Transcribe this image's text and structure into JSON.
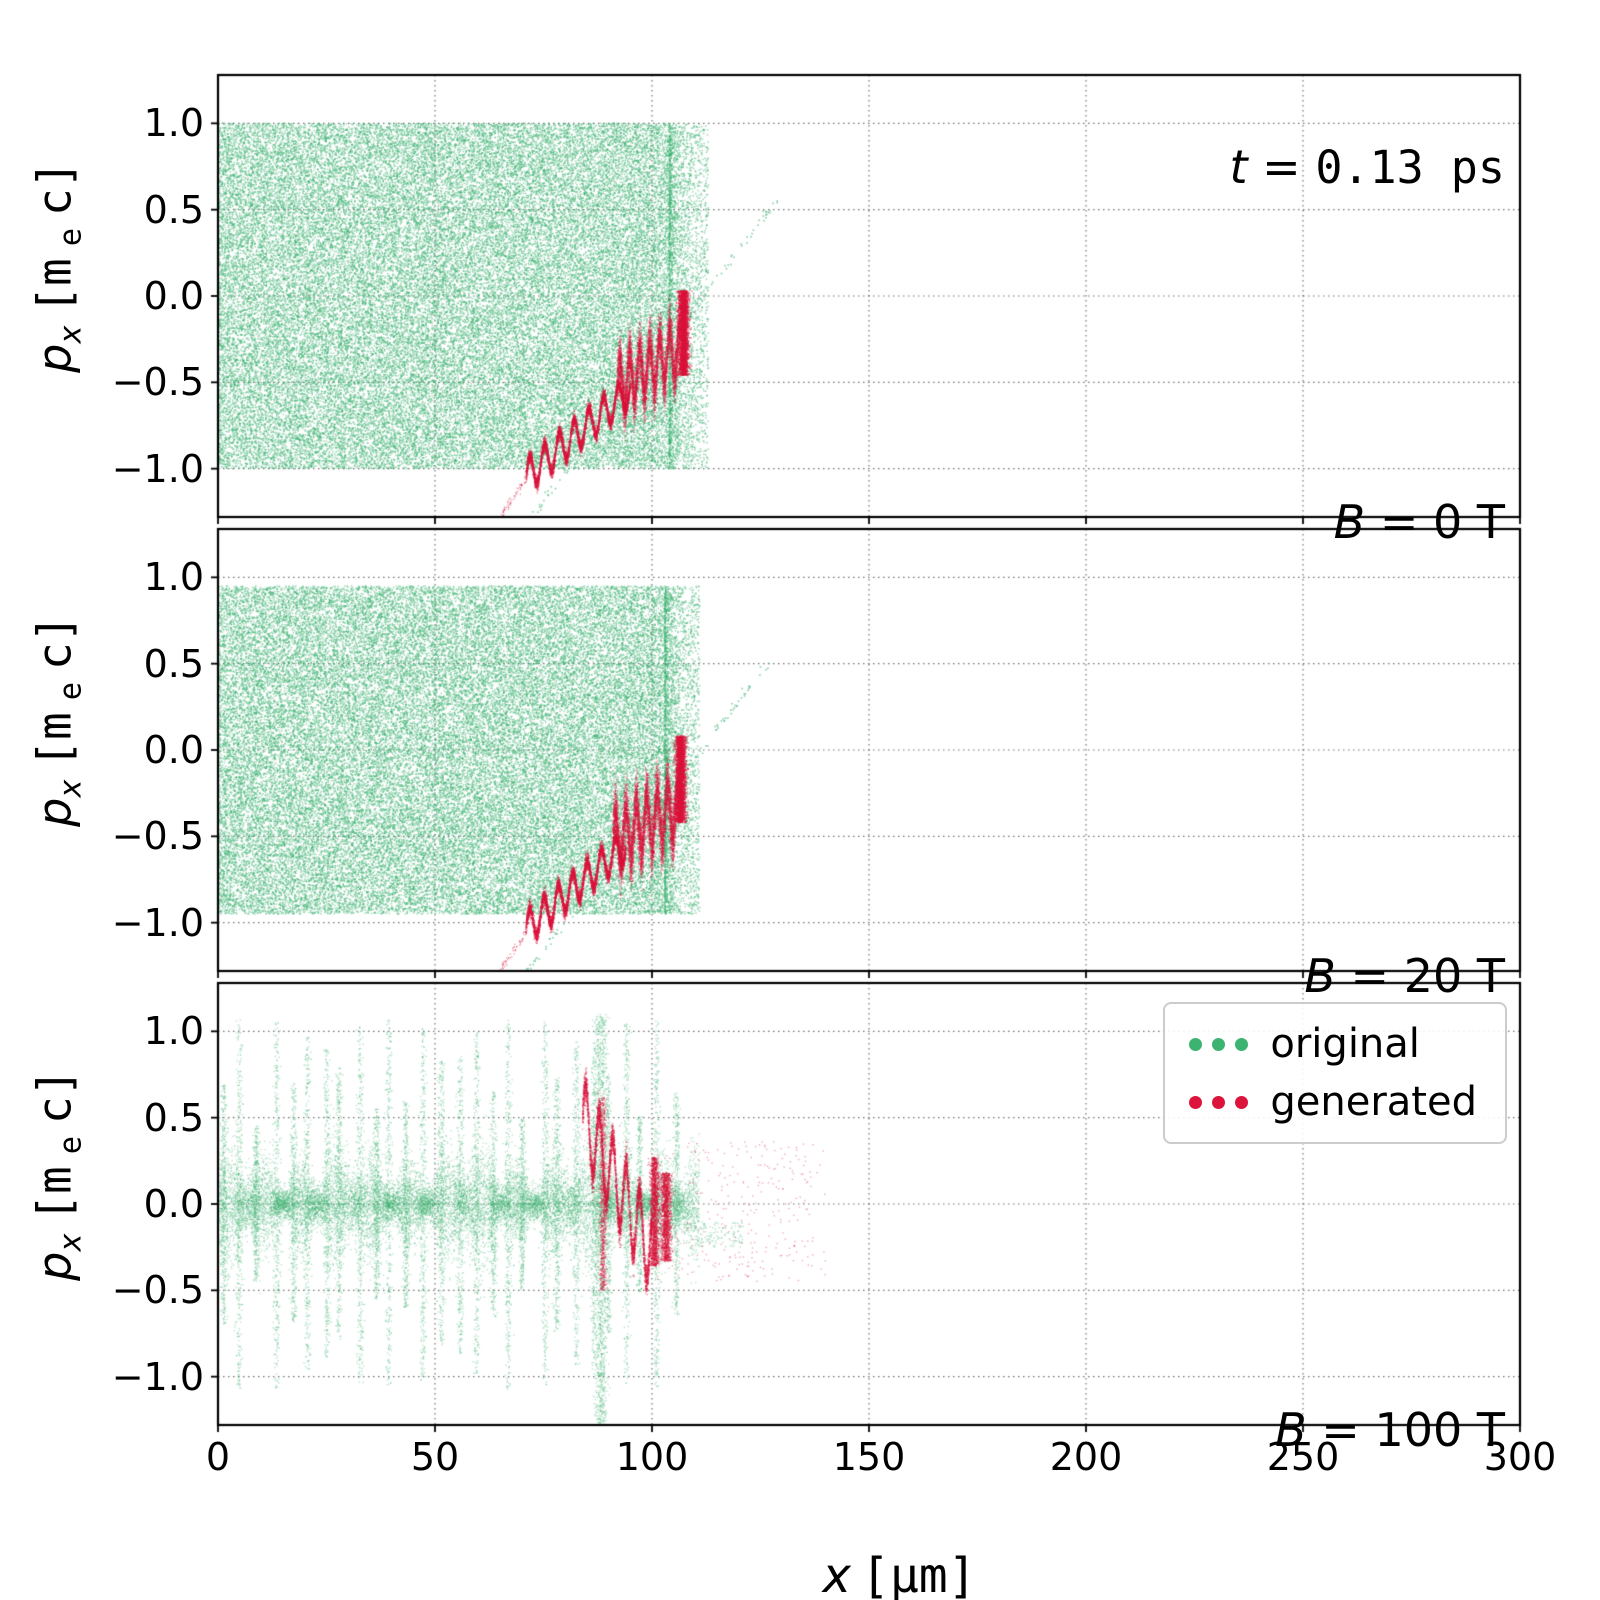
{
  "figure": {
    "time_annotation": {
      "var": "t",
      "eq": " = ",
      "value": "0.13 ps"
    },
    "xlabel": {
      "var": "x",
      "unit": "[μm]"
    },
    "ylabel": {
      "var": "p",
      "var_sub": "x",
      "unit_pre": "[m",
      "unit_sub": "e",
      "unit_post": "c]"
    },
    "legend": {
      "items": [
        {
          "label": "original",
          "color": "#3cb371"
        },
        {
          "label": "generated",
          "color": "#dc143c"
        }
      ]
    },
    "colors": {
      "original": "#3cb371",
      "generated": "#dc143c",
      "grid": "#555555",
      "frame": "#000000"
    }
  },
  "axes": {
    "x_range": [
      0,
      300
    ],
    "y_range": [
      -1.28,
      1.28
    ],
    "x_ticks": [
      0,
      50,
      100,
      150,
      200,
      250,
      300
    ],
    "y_ticks": [
      1.0,
      0.5,
      0.0,
      -0.5,
      -1.0
    ],
    "grid": "dotted"
  },
  "chart_data": [
    {
      "type": "scatter",
      "panel_label": {
        "var": "B",
        "eq": " = ",
        "value": "0 T"
      },
      "xlim": [
        0,
        300
      ],
      "ylim": [
        -1.28,
        1.28
      ],
      "series": [
        {
          "name": "original",
          "color": "#3cb371",
          "alpha": 0.5,
          "size": 1.5,
          "kind": "block",
          "x": [
            0,
            104
          ],
          "y": [
            -1.0,
            1.0
          ],
          "edge_fuzz": 9,
          "n": 52000,
          "seed": 11
        },
        {
          "name": "original-escaping-tail",
          "color": "#3cb371",
          "alpha": 0.6,
          "size": 1.6,
          "kind": "line",
          "p0": [
            72,
            -1.28
          ],
          "p1": [
            129,
            0.56
          ],
          "jitter": 0.02,
          "n": 150,
          "seed": 12
        },
        {
          "name": "generated-foot",
          "color": "#dc143c",
          "alpha": 0.5,
          "size": 1.2,
          "kind": "line",
          "p0": [
            65,
            -1.28
          ],
          "p1": [
            71.5,
            -1.05
          ],
          "jitter": 0.015,
          "n": 60,
          "seed": 13
        },
        {
          "name": "generated-wiggle",
          "color": "#dc143c",
          "alpha": 0.55,
          "size": 1.3,
          "kind": "wiggle",
          "x": [
            71,
            95
          ],
          "y0": -1.04,
          "y1": -0.55,
          "amp": 0.095,
          "wavelength": 3.4,
          "sigma": 0.02,
          "n": 5200,
          "seed": 14
        },
        {
          "name": "generated-turbulent",
          "color": "#dc143c",
          "alpha": 0.4,
          "size": 1.3,
          "kind": "wiggle",
          "x": [
            92,
            106.5
          ],
          "y0": -0.52,
          "y1": -0.3,
          "amp": 0.14,
          "wavelength": 2.3,
          "sigma": 0.07,
          "n": 7000,
          "seed": 15
        },
        {
          "name": "generated-front",
          "color": "#dc143c",
          "alpha": 0.55,
          "size": 1.4,
          "kind": "vstreak",
          "x": 107.3,
          "xj": 0.55,
          "y": [
            -0.46,
            0.03
          ],
          "n": 3000,
          "seed": 16
        }
      ]
    },
    {
      "type": "scatter",
      "panel_label": {
        "var": "B",
        "eq": " = ",
        "value": "20 T"
      },
      "xlim": [
        0,
        300
      ],
      "ylim": [
        -1.28,
        1.28
      ],
      "series": [
        {
          "name": "original",
          "color": "#3cb371",
          "alpha": 0.5,
          "size": 1.5,
          "kind": "block",
          "x": [
            0,
            103
          ],
          "y": [
            -0.95,
            0.95
          ],
          "edge_fuzz": 8,
          "n": 50000,
          "seed": 21
        },
        {
          "name": "original-escaping-tail",
          "color": "#3cb371",
          "alpha": 0.6,
          "size": 1.6,
          "kind": "line",
          "p0": [
            71,
            -1.28
          ],
          "p1": [
            127,
            0.5
          ],
          "jitter": 0.02,
          "n": 140,
          "seed": 22
        },
        {
          "name": "generated-foot",
          "color": "#dc143c",
          "alpha": 0.5,
          "size": 1.2,
          "kind": "line",
          "p0": [
            65,
            -1.28
          ],
          "p1": [
            71.5,
            -1.04
          ],
          "jitter": 0.015,
          "n": 60,
          "seed": 23
        },
        {
          "name": "generated-wiggle",
          "color": "#dc143c",
          "alpha": 0.55,
          "size": 1.3,
          "kind": "wiggle",
          "x": [
            71,
            94
          ],
          "y0": -1.03,
          "y1": -0.55,
          "amp": 0.095,
          "wavelength": 3.3,
          "sigma": 0.022,
          "n": 5200,
          "seed": 24
        },
        {
          "name": "generated-turbulent",
          "color": "#dc143c",
          "alpha": 0.42,
          "size": 1.3,
          "kind": "wiggle",
          "x": [
            91,
            106
          ],
          "y0": -0.52,
          "y1": -0.33,
          "amp": 0.15,
          "wavelength": 2.4,
          "sigma": 0.08,
          "n": 7500,
          "seed": 25
        },
        {
          "name": "generated-front",
          "color": "#dc143c",
          "alpha": 0.55,
          "size": 1.4,
          "kind": "vstreak",
          "x": 106.6,
          "xj": 0.55,
          "y": [
            -0.42,
            0.08
          ],
          "n": 3200,
          "seed": 26
        }
      ]
    },
    {
      "type": "scatter",
      "panel_label": {
        "var": "B",
        "eq": " = ",
        "value": "100 T"
      },
      "xlim": [
        0,
        300
      ],
      "ylim": [
        -1.28,
        1.28
      ],
      "series": [
        {
          "name": "original-core-band",
          "color": "#3cb371",
          "alpha": 0.35,
          "size": 1.3,
          "kind": "band",
          "x": [
            0,
            111
          ],
          "sigma": 0.11,
          "n": 15000,
          "seed": 31
        },
        {
          "name": "original-spikes",
          "color": "#3cb371",
          "alpha": 0.38,
          "size": 1.3,
          "kind": "spikes",
          "x0": 1.5,
          "spacing": 3.85,
          "count": 28,
          "amp_min": 0.45,
          "amp_max": 1.08,
          "n_per": 430,
          "seed": 32
        },
        {
          "name": "original-tall-spike",
          "color": "#3cb371",
          "alpha": 0.35,
          "size": 1.3,
          "kind": "vstreak",
          "x": 88.3,
          "xj": 0.7,
          "y": [
            -1.28,
            1.1
          ],
          "n": 1600,
          "seed": 33
        },
        {
          "name": "original-right-wisp",
          "color": "#3cb371",
          "alpha": 0.4,
          "size": 1.3,
          "kind": "sparse",
          "x": [
            111,
            121
          ],
          "y": [
            -0.25,
            -0.1
          ],
          "n": 120,
          "seed": 34
        },
        {
          "name": "generated-wiggle",
          "color": "#dc143c",
          "alpha": 0.5,
          "size": 1.3,
          "kind": "wiggle",
          "x": [
            84,
            100
          ],
          "y0": 0.5,
          "y1": -0.28,
          "amp": 0.22,
          "wavelength": 3.1,
          "sigma": 0.045,
          "n": 4200,
          "seed": 35
        },
        {
          "name": "generated-spike",
          "color": "#dc143c",
          "alpha": 0.45,
          "size": 1.2,
          "kind": "vstreak",
          "x": 88.7,
          "xj": 0.4,
          "y": [
            -0.5,
            0.62
          ],
          "n": 900,
          "seed": 36
        },
        {
          "name": "generated-front-1",
          "color": "#dc143c",
          "alpha": 0.5,
          "size": 1.3,
          "kind": "vstreak",
          "x": 100.6,
          "xj": 0.5,
          "y": [
            -0.36,
            0.27
          ],
          "n": 1500,
          "seed": 37
        },
        {
          "name": "generated-front-2",
          "color": "#dc143c",
          "alpha": 0.5,
          "size": 1.3,
          "kind": "vstreak",
          "x": 103.2,
          "xj": 0.6,
          "y": [
            -0.33,
            0.18
          ],
          "n": 1400,
          "seed": 38
        },
        {
          "name": "generated-halo",
          "color": "#dc143c",
          "alpha": 0.4,
          "size": 1.3,
          "kind": "sparse",
          "x": [
            101,
            140
          ],
          "y": [
            -0.45,
            0.36
          ],
          "n": 300,
          "seed": 39
        }
      ]
    }
  ]
}
